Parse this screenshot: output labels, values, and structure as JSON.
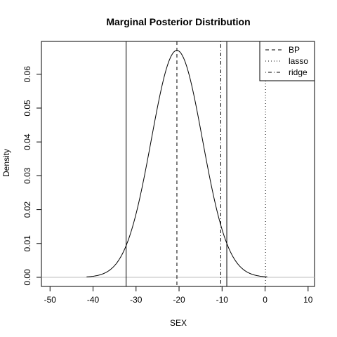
{
  "chart_data": {
    "type": "line",
    "title": "Marginal Posterior Distribution",
    "xlabel": "SEX",
    "ylabel": "Density",
    "xlim": [
      -52,
      11.5
    ],
    "ylim": [
      -0.0027,
      0.0697
    ],
    "x_ticks": [
      -50,
      -40,
      -30,
      -20,
      -10,
      0,
      10
    ],
    "x_tick_labels": [
      "-50",
      "-40",
      "-30",
      "-20",
      "-10",
      "0",
      "10"
    ],
    "y_ticks": [
      0.0,
      0.01,
      0.02,
      0.03,
      0.04,
      0.05,
      0.06
    ],
    "y_tick_labels": [
      "0.00",
      "0.01",
      "0.02",
      "0.03",
      "0.04",
      "0.05",
      "0.06"
    ],
    "grid": false,
    "density_curve": {
      "distribution": "normal",
      "mean": -20.5,
      "sd": 5.95,
      "x_range": [
        -41.5,
        0.5
      ]
    },
    "baseline_y": 0,
    "interval_lines": [
      -32.3,
      -8.9
    ],
    "series": [
      {
        "name": "BP",
        "linestyle": "dashed",
        "x": -20.5
      },
      {
        "name": "lasso",
        "linestyle": "dotted",
        "x": 0.1
      },
      {
        "name": "ridge",
        "linestyle": "dashdot",
        "x": -10.3
      }
    ],
    "legend_position": "top-right",
    "colors": {
      "curve": "#000000",
      "baseline": "#bebebe",
      "axes": "#000000"
    }
  }
}
